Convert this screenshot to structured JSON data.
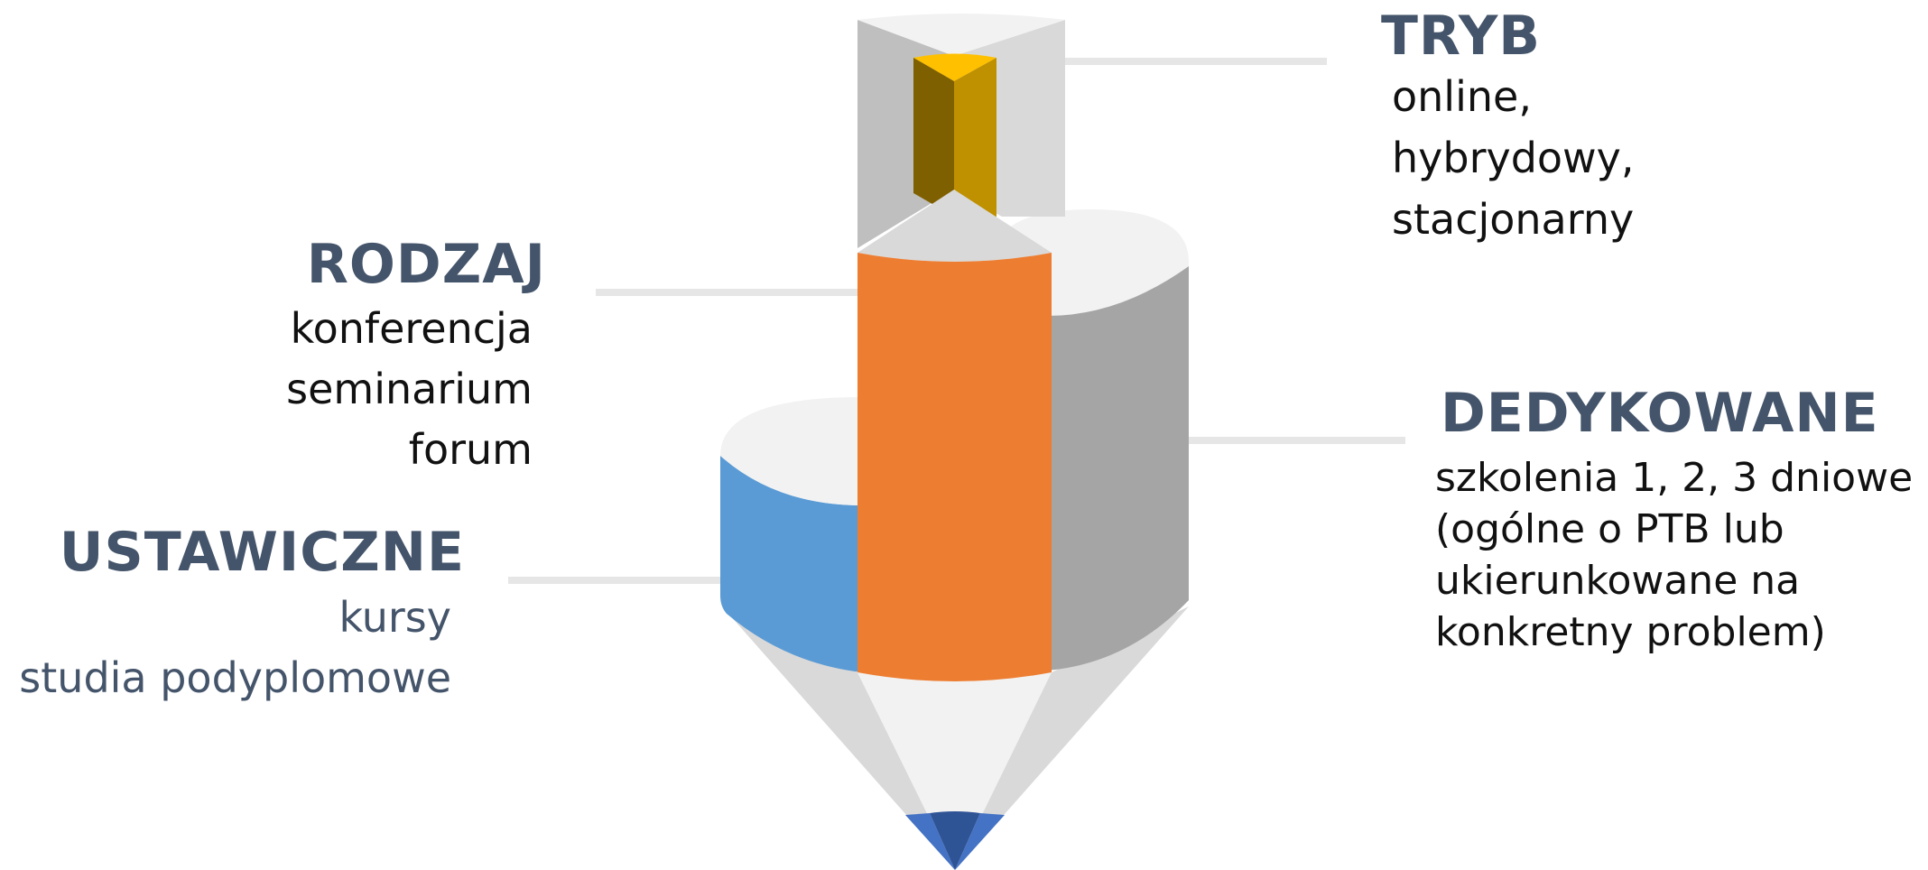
{
  "colors": {
    "heading": "#44546a",
    "text": "#111111",
    "blue": "#5b9bd5",
    "orange": "#ed7d31",
    "gray": "#a5a5a5",
    "gold": "#ffc000",
    "connector": "#e7e6e6"
  },
  "categories": [
    {
      "id": "tryb",
      "title": "TRYB",
      "items": [
        "online,",
        "hybrydowy,",
        "stacjonarny"
      ]
    },
    {
      "id": "rodzaj",
      "title": "RODZAJ",
      "items": [
        "konferencja",
        "seminarium",
        "forum"
      ]
    },
    {
      "id": "ustawiczne",
      "title": "USTAWICZNE",
      "items": [
        "kursy",
        "studia podyplomowe"
      ]
    },
    {
      "id": "dedykowane",
      "title": "DEDYKOWANE",
      "items": [
        "szkolenia 1, 2, 3 dniowe",
        "(ogólne o PTB lub",
        "ukierunkowane na",
        "konkretny problem)"
      ]
    }
  ]
}
